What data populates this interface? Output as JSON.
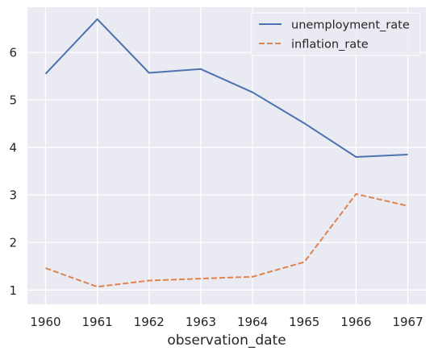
{
  "chart_data": {
    "type": "line",
    "x": [
      1960,
      1961,
      1962,
      1963,
      1964,
      1965,
      1966,
      1967
    ],
    "x_tick_labels": [
      "1960",
      "1961",
      "1962",
      "1963",
      "1964",
      "1965",
      "1966",
      "1967"
    ],
    "y_ticks": [
      1,
      2,
      3,
      4,
      5,
      6
    ],
    "y_tick_labels": [
      "1",
      "2",
      "3",
      "4",
      "5",
      "6"
    ],
    "xlim": [
      1959.65,
      1967.35
    ],
    "ylim": [
      0.7,
      6.95
    ],
    "xlabel": "observation_date",
    "ylabel": "",
    "grid": true,
    "legend": "top-right",
    "series": [
      {
        "name": "unemployment_rate",
        "color": "#4c72b0",
        "dash": "solid",
        "values": [
          5.55,
          6.7,
          5.57,
          5.65,
          5.16,
          4.51,
          3.8,
          3.85
        ]
      },
      {
        "name": "inflation_rate",
        "color": "#dd8452",
        "dash": "dashed",
        "values": [
          1.46,
          1.07,
          1.2,
          1.24,
          1.28,
          1.59,
          3.02,
          2.77
        ]
      }
    ],
    "background_color": "#eaeaf2",
    "grid_color": "#ffffff"
  }
}
